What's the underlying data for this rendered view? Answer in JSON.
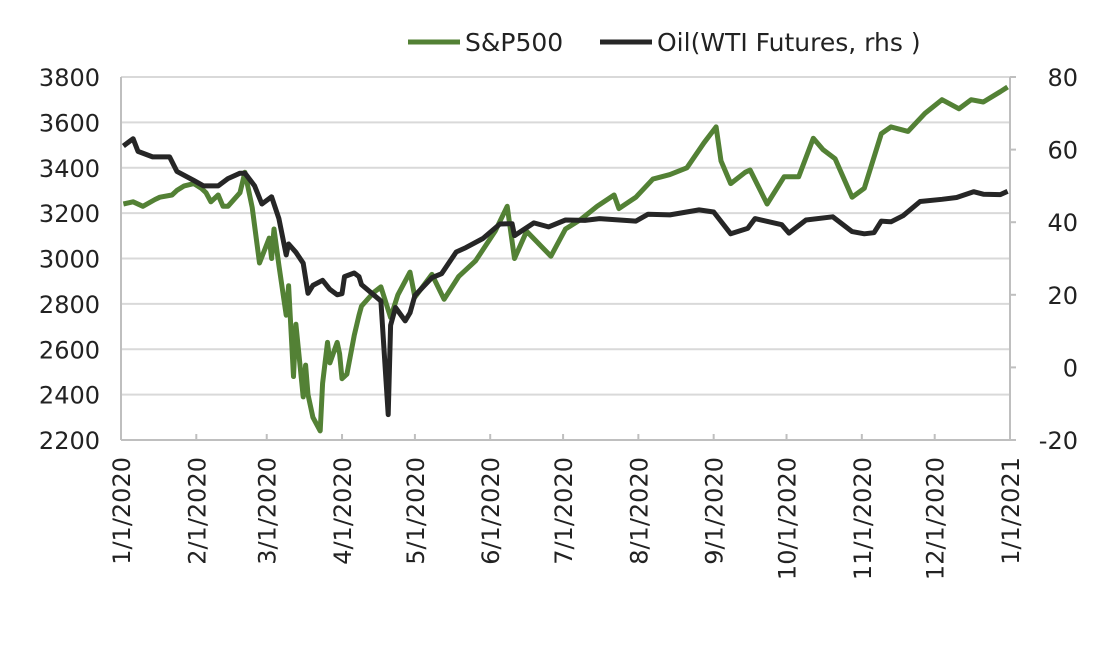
{
  "chart_data": {
    "type": "line",
    "title": "",
    "legend_position": "top",
    "grid": true,
    "colors": {
      "sp500": "#538135",
      "oil": "#262626",
      "grid": "#d9d9d9",
      "axis": "#bfbfbf"
    },
    "x_ticks": [
      "1/1/2020",
      "2/1/2020",
      "3/1/2020",
      "4/1/2020",
      "5/1/2020",
      "6/1/2020",
      "7/1/2020",
      "8/1/2020",
      "9/1/2020",
      "10/1/2020",
      "11/1/2020",
      "12/1/2020",
      "1/1/2021"
    ],
    "x_tick_dates": [
      "2020-01-01",
      "2020-02-01",
      "2020-03-01",
      "2020-04-01",
      "2020-05-01",
      "2020-06-01",
      "2020-07-01",
      "2020-08-01",
      "2020-09-01",
      "2020-10-01",
      "2020-11-01",
      "2020-12-01",
      "2021-01-01"
    ],
    "y_left": {
      "lim": [
        2200,
        3800
      ],
      "ticks": [
        "2200",
        "2400",
        "2600",
        "2800",
        "3000",
        "3200",
        "3400",
        "3600",
        "3800"
      ]
    },
    "y_right": {
      "lim": [
        -20,
        80
      ],
      "ticks": [
        "-20",
        "0",
        "20",
        "40",
        "60",
        "80"
      ]
    },
    "series": [
      {
        "name": "S&P500",
        "axis": "left",
        "x": [
          "2020-01-02",
          "2020-01-06",
          "2020-01-10",
          "2020-01-15",
          "2020-01-17",
          "2020-01-22",
          "2020-01-24",
          "2020-01-27",
          "2020-01-31",
          "2020-02-03",
          "2020-02-05",
          "2020-02-07",
          "2020-02-10",
          "2020-02-12",
          "2020-02-14",
          "2020-02-19",
          "2020-02-21",
          "2020-02-24",
          "2020-02-27",
          "2020-03-02",
          "2020-03-03",
          "2020-03-04",
          "2020-03-06",
          "2020-03-09",
          "2020-03-10",
          "2020-03-12",
          "2020-03-13",
          "2020-03-16",
          "2020-03-17",
          "2020-03-18",
          "2020-03-20",
          "2020-03-23",
          "2020-03-24",
          "2020-03-26",
          "2020-03-27",
          "2020-03-30",
          "2020-03-31",
          "2020-04-01",
          "2020-04-03",
          "2020-04-06",
          "2020-04-08",
          "2020-04-09",
          "2020-04-14",
          "2020-04-17",
          "2020-04-21",
          "2020-04-24",
          "2020-04-29",
          "2020-05-01",
          "2020-05-08",
          "2020-05-13",
          "2020-05-19",
          "2020-05-26",
          "2020-06-03",
          "2020-06-08",
          "2020-06-11",
          "2020-06-16",
          "2020-06-26",
          "2020-07-02",
          "2020-07-08",
          "2020-07-15",
          "2020-07-22",
          "2020-07-24",
          "2020-07-31",
          "2020-08-07",
          "2020-08-14",
          "2020-08-21",
          "2020-08-28",
          "2020-09-02",
          "2020-09-04",
          "2020-09-08",
          "2020-09-14",
          "2020-09-16",
          "2020-09-23",
          "2020-09-30",
          "2020-10-06",
          "2020-10-12",
          "2020-10-16",
          "2020-10-21",
          "2020-10-28",
          "2020-11-02",
          "2020-11-09",
          "2020-11-13",
          "2020-11-20",
          "2020-11-27",
          "2020-12-04",
          "2020-12-11",
          "2020-12-16",
          "2020-12-21",
          "2020-12-28",
          "2020-12-31"
        ],
        "values": [
          3240,
          3250,
          3230,
          3260,
          3270,
          3280,
          3300,
          3320,
          3330,
          3310,
          3290,
          3250,
          3280,
          3230,
          3230,
          3290,
          3380,
          3225,
          2980,
          3090,
          3000,
          3130,
          2970,
          2750,
          2880,
          2480,
          2710,
          2390,
          2530,
          2400,
          2300,
          2240,
          2450,
          2630,
          2540,
          2630,
          2580,
          2470,
          2490,
          2660,
          2750,
          2790,
          2850,
          2875,
          2740,
          2840,
          2940,
          2830,
          2930,
          2820,
          2920,
          2990,
          3120,
          3230,
          3000,
          3120,
          3010,
          3130,
          3170,
          3230,
          3280,
          3220,
          3270,
          3350,
          3370,
          3400,
          3510,
          3580,
          3430,
          3330,
          3380,
          3390,
          3240,
          3360,
          3360,
          3530,
          3480,
          3440,
          3270,
          3310,
          3550,
          3580,
          3560,
          3640,
          3700,
          3660,
          3700,
          3690,
          3735,
          3756
        ]
      },
      {
        "name": "Oil(WTI Futures, rhs )",
        "axis": "right",
        "x": [
          "2020-01-02",
          "2020-01-06",
          "2020-01-08",
          "2020-01-14",
          "2020-01-21",
          "2020-01-24",
          "2020-01-31",
          "2020-02-04",
          "2020-02-10",
          "2020-02-14",
          "2020-02-19",
          "2020-02-21",
          "2020-02-25",
          "2020-02-28",
          "2020-03-03",
          "2020-03-06",
          "2020-03-09",
          "2020-03-10",
          "2020-03-13",
          "2020-03-16",
          "2020-03-18",
          "2020-03-20",
          "2020-03-24",
          "2020-03-27",
          "2020-03-30",
          "2020-04-01",
          "2020-04-02",
          "2020-04-06",
          "2020-04-08",
          "2020-04-09",
          "2020-04-14",
          "2020-04-17",
          "2020-04-20",
          "2020-04-21",
          "2020-04-23",
          "2020-04-27",
          "2020-04-29",
          "2020-05-01",
          "2020-05-08",
          "2020-05-12",
          "2020-05-18",
          "2020-05-22",
          "2020-05-29",
          "2020-06-05",
          "2020-06-10",
          "2020-06-11",
          "2020-06-19",
          "2020-06-25",
          "2020-07-02",
          "2020-07-10",
          "2020-07-16",
          "2020-07-31",
          "2020-08-05",
          "2020-08-14",
          "2020-08-26",
          "2020-09-01",
          "2020-09-08",
          "2020-09-15",
          "2020-09-18",
          "2020-09-29",
          "2020-10-02",
          "2020-10-09",
          "2020-10-20",
          "2020-10-28",
          "2020-11-02",
          "2020-11-06",
          "2020-11-09",
          "2020-11-13",
          "2020-11-18",
          "2020-11-25",
          "2020-12-04",
          "2020-12-10",
          "2020-12-17",
          "2020-12-21",
          "2020-12-28",
          "2020-12-31"
        ],
        "values": [
          61,
          63,
          59.5,
          58,
          58,
          54,
          51.5,
          50,
          50,
          52,
          53.5,
          53.5,
          50,
          45,
          47,
          41,
          31,
          34,
          31.7,
          28.7,
          20.4,
          22.6,
          24,
          21.5,
          20,
          20.3,
          25,
          26,
          25,
          22.8,
          20,
          18.3,
          -13,
          11.6,
          16.5,
          12.8,
          15,
          19.8,
          24.7,
          25.8,
          31.8,
          33,
          35.5,
          39.5,
          39.6,
          36.3,
          39.8,
          38.7,
          40.6,
          40.5,
          41,
          40.3,
          42.2,
          42,
          43.4,
          42.8,
          36.8,
          38.3,
          41,
          39.3,
          37,
          40.6,
          41.5,
          37.4,
          36.8,
          37.1,
          40.3,
          40.1,
          41.8,
          45.7,
          46.3,
          46.8,
          48.4,
          47.7,
          47.6,
          48.5
        ]
      }
    ]
  }
}
